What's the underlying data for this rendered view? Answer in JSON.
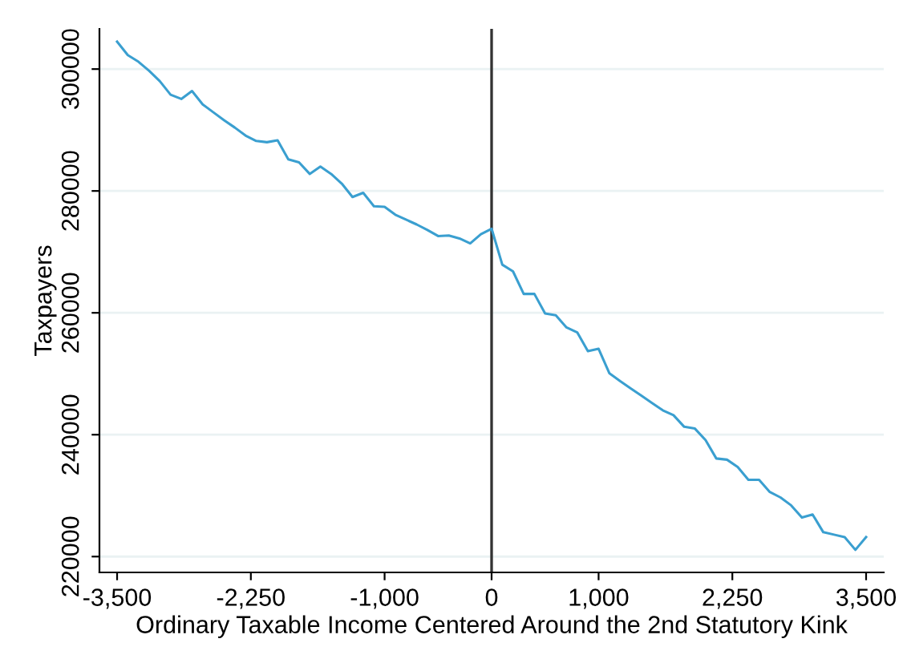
{
  "chart_data": {
    "type": "line",
    "xlabel": "Ordinary Taxable Income Centered Around the 2nd Statutory Kink",
    "ylabel": "Taxpayers",
    "x": [
      -3500,
      -3400,
      -3300,
      -3200,
      -3100,
      -3000,
      -2900,
      -2800,
      -2700,
      -2600,
      -2500,
      -2400,
      -2300,
      -2200,
      -2100,
      -2000,
      -1900,
      -1800,
      -1700,
      -1600,
      -1500,
      -1400,
      -1300,
      -1200,
      -1100,
      -1000,
      -900,
      -800,
      -700,
      -600,
      -500,
      -400,
      -300,
      -200,
      -100,
      0,
      100,
      200,
      300,
      400,
      500,
      600,
      700,
      800,
      900,
      1000,
      1100,
      1200,
      1300,
      1400,
      1500,
      1600,
      1700,
      1800,
      1900,
      2000,
      2100,
      2200,
      2300,
      2400,
      2500,
      2600,
      2700,
      2800,
      2900,
      3000,
      3100,
      3200,
      3300,
      3400,
      3500
    ],
    "series": [
      {
        "color": "#3a9fd0",
        "values": [
          304500,
          302300,
          301200,
          299700,
          298000,
          295800,
          295100,
          296400,
          294200,
          292900,
          291600,
          290400,
          289100,
          288200,
          288000,
          288300,
          285200,
          284700,
          282800,
          284000,
          282800,
          281200,
          279000,
          279700,
          277500,
          277400,
          276100,
          275300,
          274500,
          273600,
          272600,
          272700,
          272200,
          271400,
          272900,
          273800,
          267900,
          266800,
          263100,
          263100,
          259900,
          259600,
          257600,
          256800,
          253700,
          254100,
          250100,
          248800,
          247600,
          246400,
          245200,
          244000,
          243200,
          241300,
          241000,
          239100,
          236100,
          235900,
          234700,
          232600,
          232600,
          230600,
          229700,
          228400,
          226400,
          226900,
          224000,
          223600,
          223200,
          221100,
          223200
        ]
      }
    ],
    "xlim": [
      -3665,
      3665
    ],
    "ylim": [
      217400,
      306600
    ],
    "xticks": [
      {
        "value": -3500,
        "label": "-3,500"
      },
      {
        "value": -2250,
        "label": "-2,250"
      },
      {
        "value": -1000,
        "label": "-1,000"
      },
      0,
      {
        "value": 1000,
        "label": "1,000"
      },
      {
        "value": 2250,
        "label": "2,250"
      },
      {
        "value": 3500,
        "label": "3,500"
      }
    ],
    "yticks": [
      220000,
      240000,
      260000,
      280000,
      300000
    ],
    "ref_lines": [
      {
        "axis": "x",
        "value": 0,
        "color": "#333333"
      }
    ],
    "grid": "y",
    "marker": "none",
    "line_style": "solid",
    "legend": false
  }
}
